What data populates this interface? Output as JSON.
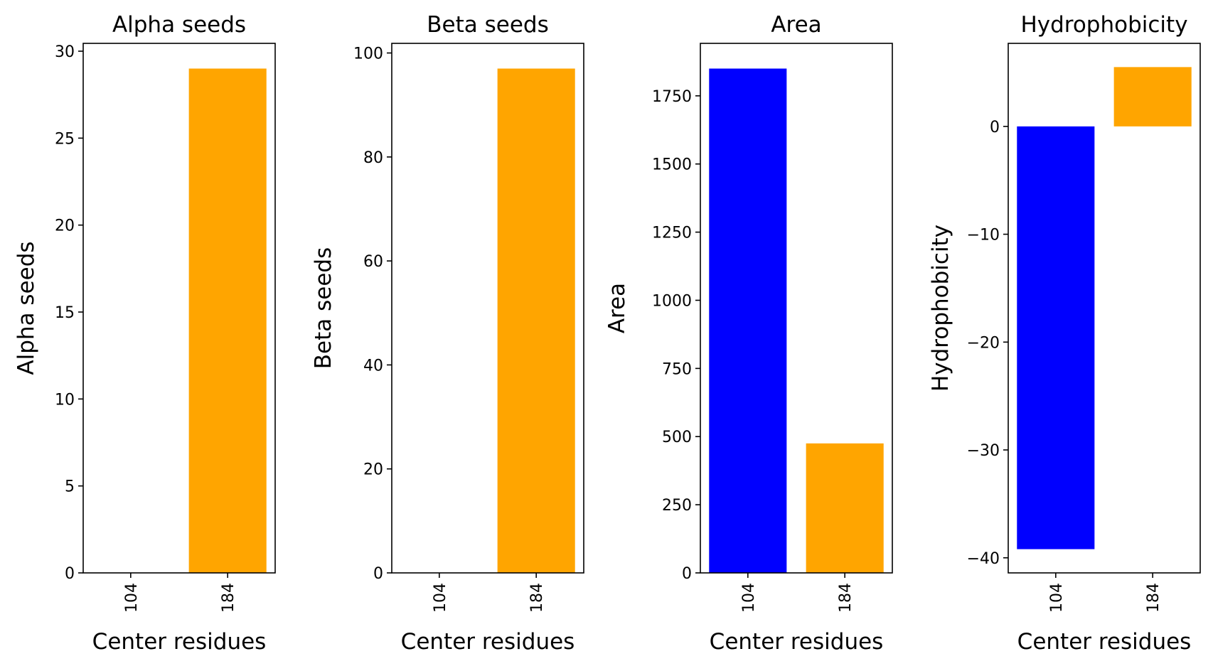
{
  "colors": {
    "first_bar": "#0000ff",
    "second_bar": "#ffa500",
    "axes": "#000000",
    "background": "#ffffff"
  },
  "chart_data": [
    {
      "type": "bar",
      "title": "Alpha seeds",
      "xlabel": "Center residues",
      "ylabel": "Alpha seeds",
      "categories": [
        "104",
        "184"
      ],
      "values": [
        0,
        29
      ],
      "ylim": [
        0,
        30.45
      ],
      "yticks": [
        0,
        5,
        10,
        15,
        20,
        25,
        30
      ],
      "ytick_labels": [
        "0",
        "5",
        "10",
        "15",
        "20",
        "25",
        "30"
      ],
      "bar_colors": [
        "#0000ff",
        "#ffa500"
      ],
      "grid": false
    },
    {
      "type": "bar",
      "title": "Beta seeds",
      "xlabel": "Center residues",
      "ylabel": "Beta seeds",
      "categories": [
        "104",
        "184"
      ],
      "values": [
        0,
        97
      ],
      "ylim": [
        0,
        101.85
      ],
      "yticks": [
        0,
        20,
        40,
        60,
        80,
        100
      ],
      "ytick_labels": [
        "0",
        "20",
        "40",
        "60",
        "80",
        "100"
      ],
      "bar_colors": [
        "#0000ff",
        "#ffa500"
      ],
      "grid": false
    },
    {
      "type": "bar",
      "title": "Area",
      "xlabel": "Center residues",
      "ylabel": "Area",
      "categories": [
        "104",
        "184"
      ],
      "values": [
        1850,
        475
      ],
      "ylim": [
        0,
        1942.5
      ],
      "yticks": [
        0,
        250,
        500,
        750,
        1000,
        1250,
        1500,
        1750
      ],
      "ytick_labels": [
        "0",
        "250",
        "500",
        "750",
        "1000",
        "1250",
        "1500",
        "1750"
      ],
      "bar_colors": [
        "#0000ff",
        "#ffa500"
      ],
      "grid": false
    },
    {
      "type": "bar",
      "title": "Hydrophobicity",
      "xlabel": "Center residues",
      "ylabel": "Hydrophobicity",
      "categories": [
        "104",
        "184"
      ],
      "values": [
        -39.2,
        5.5
      ],
      "ylim": [
        -41.4,
        7.7
      ],
      "yticks": [
        -40,
        -30,
        -20,
        -10,
        0
      ],
      "ytick_labels": [
        "−40",
        "−30",
        "−20",
        "−10",
        "0"
      ],
      "bar_colors": [
        "#0000ff",
        "#ffa500"
      ],
      "grid": false
    }
  ]
}
